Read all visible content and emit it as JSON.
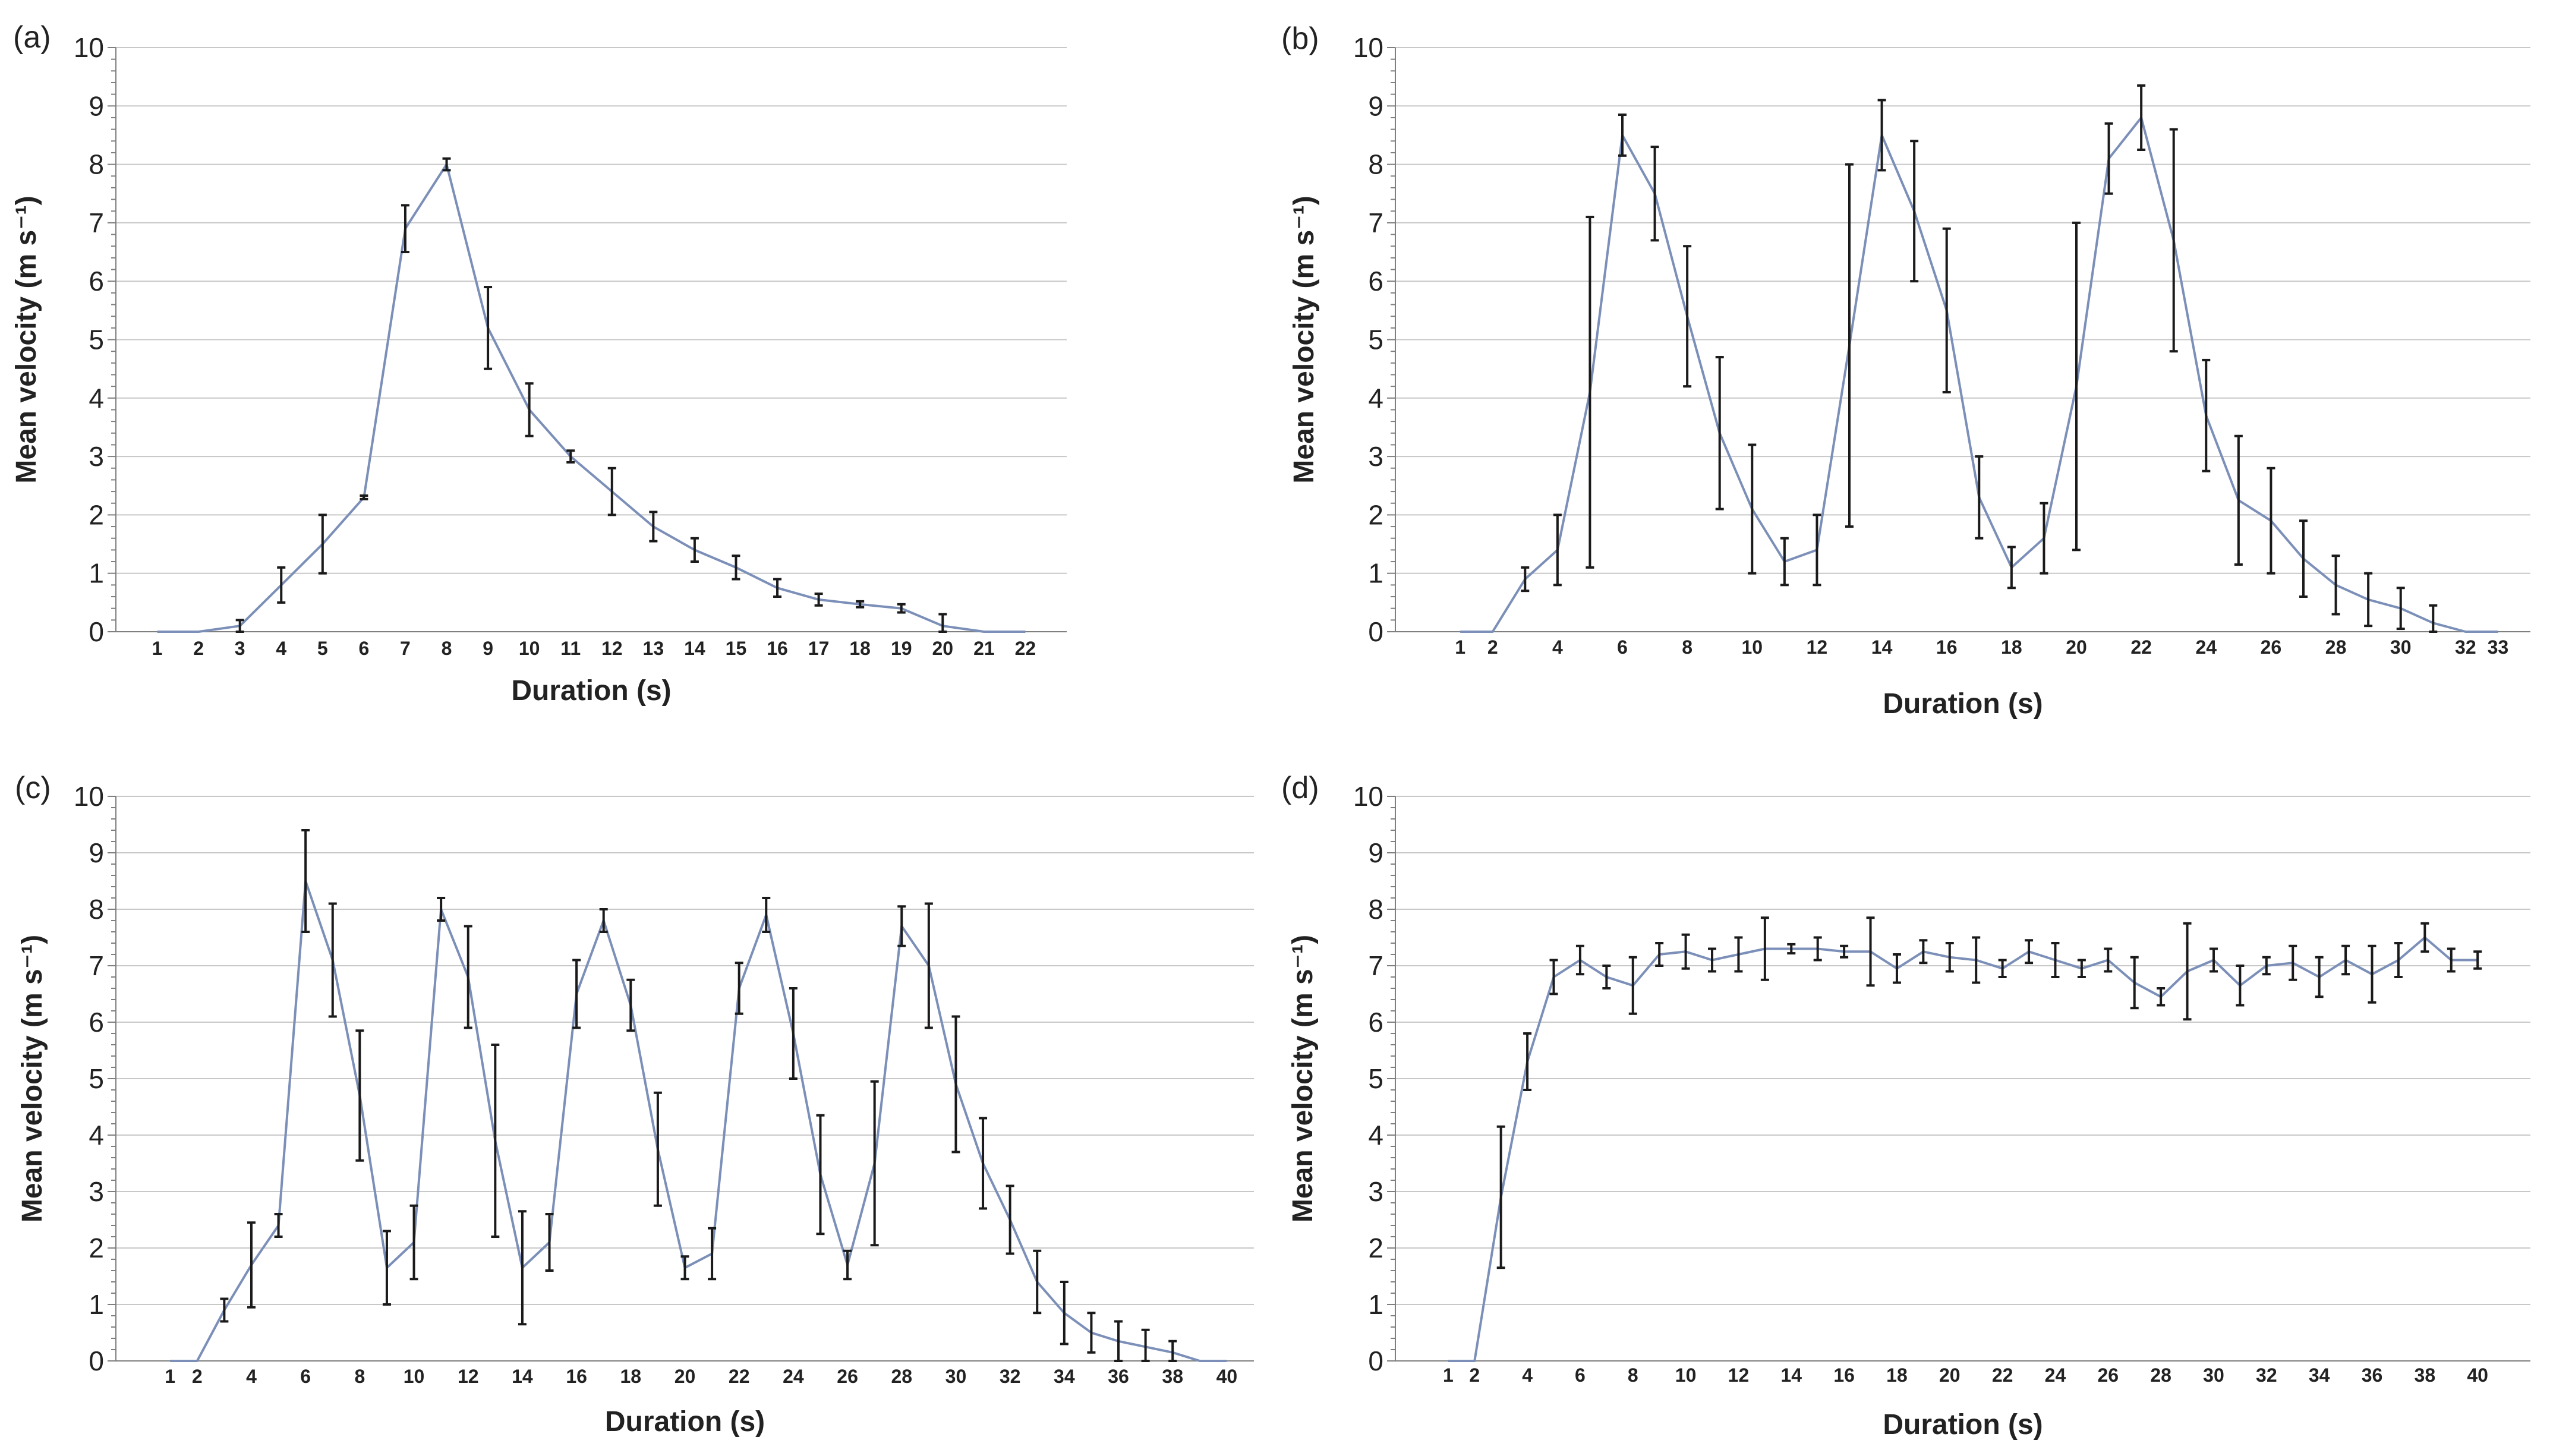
{
  "chart_data": [
    {
      "type": "line",
      "panel_label": "(a)",
      "title": "",
      "xlabel": "Duration  (s)",
      "ylabel": "Mean velocity (m s⁻¹)",
      "ylim": [
        0,
        10
      ],
      "yticks": [
        "0",
        "1",
        "2",
        "3",
        "4",
        "5",
        "6",
        "7",
        "8",
        "9",
        "10"
      ],
      "xlim": [
        0,
        23
      ],
      "xtick_labels": [
        1,
        2,
        3,
        4,
        5,
        6,
        7,
        8,
        9,
        10,
        11,
        12,
        13,
        14,
        15,
        16,
        17,
        18,
        19,
        20,
        21,
        22
      ],
      "grid": true,
      "line_color": "#7b8fb8",
      "error_bar_color": "#1a1a1a",
      "series": [
        {
          "name": "Mean velocity",
          "x": [
            1,
            2,
            3,
            4,
            5,
            6,
            7,
            8,
            9,
            10,
            11,
            12,
            13,
            14,
            15,
            16,
            17,
            18,
            19,
            20,
            21,
            22
          ],
          "y": [
            0,
            0,
            0.1,
            0.8,
            1.5,
            2.3,
            6.9,
            8.0,
            5.2,
            3.8,
            3.0,
            2.4,
            1.8,
            1.4,
            1.1,
            0.75,
            0.55,
            0.47,
            0.4,
            0.1,
            0,
            0
          ],
          "err": [
            0,
            0,
            0.1,
            0.3,
            0.5,
            0.03,
            0.4,
            0.1,
            0.7,
            0.45,
            0.1,
            0.4,
            0.25,
            0.2,
            0.2,
            0.15,
            0.1,
            0.05,
            0.07,
            0.2,
            0,
            0
          ]
        }
      ]
    },
    {
      "type": "line",
      "panel_label": "(b)",
      "title": "",
      "xlabel": "Duration  (s)",
      "ylabel": "Mean velocity (m s⁻¹)",
      "ylim": [
        0,
        10
      ],
      "yticks": [
        "0",
        "1",
        "2",
        "3",
        "4",
        "5",
        "6",
        "7",
        "8",
        "9",
        "10"
      ],
      "xlim": [
        -1,
        34
      ],
      "xtick_labels": [
        1,
        2,
        4,
        6,
        8,
        10,
        12,
        14,
        16,
        18,
        20,
        22,
        24,
        26,
        28,
        30,
        32,
        33
      ],
      "grid": true,
      "line_color": "#7b8fb8",
      "error_bar_color": "#1a1a1a",
      "series": [
        {
          "name": "Mean velocity",
          "x": [
            1,
            2,
            3,
            4,
            5,
            6,
            7,
            8,
            9,
            10,
            11,
            12,
            13,
            14,
            15,
            16,
            17,
            18,
            19,
            20,
            21,
            22,
            23,
            24,
            25,
            26,
            27,
            28,
            29,
            30,
            31,
            32,
            33
          ],
          "y": [
            0,
            0,
            0.9,
            1.4,
            4.1,
            8.5,
            7.5,
            5.4,
            3.4,
            2.1,
            1.2,
            1.4,
            4.9,
            8.5,
            7.2,
            5.5,
            2.3,
            1.1,
            1.6,
            4.2,
            8.1,
            8.8,
            6.7,
            3.7,
            2.25,
            1.9,
            1.25,
            0.8,
            0.55,
            0.4,
            0.15,
            0,
            0
          ],
          "err": [
            0,
            0,
            0.2,
            0.6,
            3.0,
            0.35,
            0.8,
            1.2,
            1.3,
            1.1,
            0.4,
            0.6,
            3.1,
            0.6,
            1.2,
            1.4,
            0.7,
            0.35,
            0.6,
            2.8,
            0.6,
            0.55,
            1.9,
            0.95,
            1.1,
            0.9,
            0.65,
            0.5,
            0.45,
            0.35,
            0.3,
            0,
            0
          ]
        }
      ]
    },
    {
      "type": "line",
      "panel_label": "(c)",
      "title": "",
      "xlabel": "Duration  (s)",
      "ylabel": "Mean velocity (m s⁻¹)",
      "ylim": [
        0,
        10
      ],
      "yticks": [
        "0",
        "1",
        "2",
        "3",
        "4",
        "5",
        "6",
        "7",
        "8",
        "9",
        "10"
      ],
      "xlim": [
        -1,
        41
      ],
      "xtick_labels": [
        1,
        2,
        4,
        6,
        8,
        10,
        12,
        14,
        16,
        18,
        20,
        22,
        24,
        26,
        28,
        30,
        32,
        34,
        36,
        38,
        40
      ],
      "grid": true,
      "line_color": "#7b8fb8",
      "error_bar_color": "#1a1a1a",
      "series": [
        {
          "name": "Mean velocity",
          "x": [
            1,
            2,
            3,
            4,
            5,
            6,
            7,
            8,
            9,
            10,
            11,
            12,
            13,
            14,
            15,
            16,
            17,
            18,
            19,
            20,
            21,
            22,
            23,
            24,
            25,
            26,
            27,
            28,
            29,
            30,
            31,
            32,
            33,
            34,
            35,
            36,
            37,
            38,
            39,
            40
          ],
          "y": [
            0,
            0,
            0.9,
            1.7,
            2.4,
            8.5,
            7.1,
            4.7,
            1.65,
            2.1,
            8.0,
            6.8,
            3.9,
            1.65,
            2.1,
            6.5,
            7.8,
            6.3,
            3.75,
            1.65,
            1.9,
            6.6,
            7.9,
            5.8,
            3.3,
            1.7,
            3.5,
            7.7,
            7.0,
            4.9,
            3.5,
            2.5,
            1.4,
            0.85,
            0.5,
            0.35,
            0.25,
            0.15,
            0,
            0
          ],
          "err": [
            0,
            0,
            0.2,
            0.75,
            0.2,
            0.9,
            1.0,
            1.15,
            0.65,
            0.65,
            0.2,
            0.9,
            1.7,
            1.0,
            0.5,
            0.6,
            0.2,
            0.45,
            1.0,
            0.2,
            0.45,
            0.45,
            0.3,
            0.8,
            1.05,
            0.25,
            1.45,
            0.35,
            1.1,
            1.2,
            0.8,
            0.6,
            0.55,
            0.55,
            0.35,
            0.35,
            0.3,
            0.2,
            0,
            0
          ]
        }
      ]
    },
    {
      "type": "line",
      "panel_label": "(d)",
      "title": "",
      "xlabel": "Duration  (s)",
      "ylabel": "Mean velocity (m s⁻¹)",
      "ylim": [
        0,
        10
      ],
      "yticks": [
        "0",
        "1",
        "2",
        "3",
        "4",
        "5",
        "6",
        "7",
        "8",
        "9",
        "10"
      ],
      "xlim": [
        -1,
        42
      ],
      "xtick_labels": [
        1,
        2,
        4,
        6,
        8,
        10,
        12,
        14,
        16,
        18,
        20,
        22,
        24,
        26,
        28,
        30,
        32,
        34,
        36,
        38,
        40
      ],
      "grid": true,
      "line_color": "#7b8fb8",
      "error_bar_color": "#1a1a1a",
      "series": [
        {
          "name": "Mean velocity",
          "x": [
            1,
            2,
            3,
            4,
            5,
            6,
            7,
            8,
            9,
            10,
            11,
            12,
            13,
            14,
            15,
            16,
            17,
            18,
            19,
            20,
            21,
            22,
            23,
            24,
            25,
            26,
            27,
            28,
            29,
            30,
            31,
            32,
            33,
            34,
            35,
            36,
            37,
            38,
            39,
            40
          ],
          "y": [
            0,
            0,
            2.9,
            5.3,
            6.8,
            7.1,
            6.8,
            6.65,
            7.2,
            7.25,
            7.1,
            7.2,
            7.3,
            7.3,
            7.3,
            7.25,
            7.25,
            6.95,
            7.25,
            7.15,
            7.1,
            6.95,
            7.25,
            7.1,
            6.95,
            7.1,
            6.7,
            6.45,
            6.9,
            7.1,
            6.65,
            7.0,
            7.05,
            6.8,
            7.1,
            6.85,
            7.1,
            7.5,
            7.1,
            7.1
          ],
          "err": [
            0,
            0,
            1.25,
            0.5,
            0.3,
            0.25,
            0.2,
            0.5,
            0.2,
            0.3,
            0.2,
            0.3,
            0.55,
            0.08,
            0.2,
            0.1,
            0.6,
            0.25,
            0.2,
            0.25,
            0.4,
            0.15,
            0.2,
            0.3,
            0.15,
            0.2,
            0.45,
            0.15,
            0.85,
            0.2,
            0.35,
            0.15,
            0.3,
            0.35,
            0.25,
            0.5,
            0.3,
            0.25,
            0.2,
            0.15
          ]
        }
      ]
    }
  ]
}
